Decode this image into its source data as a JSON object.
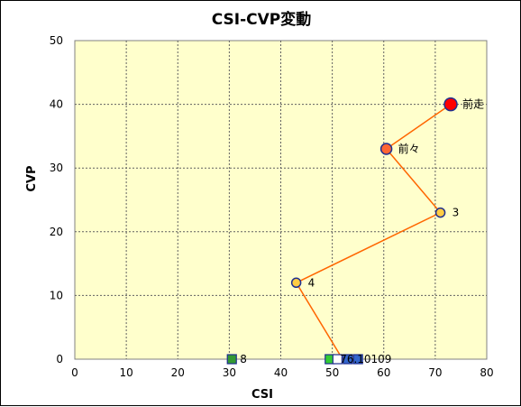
{
  "chart_data": {
    "type": "scatter",
    "title": "CSI-CVP変動",
    "xlabel": "CSI",
    "ylabel": "CVP",
    "xlim": [
      0,
      80
    ],
    "ylim": [
      0,
      50
    ],
    "x_ticks": [
      0,
      10,
      20,
      30,
      40,
      50,
      60,
      70,
      80
    ],
    "y_ticks": [
      0,
      10,
      20,
      30,
      40,
      50
    ],
    "grid": true,
    "background_color": "#ffffcc",
    "line_color": "#ff6600",
    "path": [
      {
        "label": "前走",
        "x": 73,
        "y": 40,
        "marker": "circle-large",
        "color": "#ff0000"
      },
      {
        "label": "前々",
        "x": 60.5,
        "y": 33,
        "marker": "circle-medium",
        "color": "#ff6633"
      },
      {
        "label": "3",
        "x": 71,
        "y": 23,
        "marker": "circle-small",
        "color": "#ffcc44"
      },
      {
        "label": "4",
        "x": 43,
        "y": 12,
        "marker": "circle-small",
        "color": "#ffcc44"
      },
      {
        "label": "",
        "x": 52,
        "y": 0,
        "marker": "none",
        "color": "#ff6600"
      }
    ],
    "squares": [
      {
        "label": "8",
        "x": 30.5,
        "y": 0,
        "color": "#339933",
        "label_side": "right"
      },
      {
        "label": "",
        "x": 49.5,
        "y": 0,
        "color": "#33cc33",
        "label_side": "none"
      },
      {
        "label": "",
        "x": 51,
        "y": 0,
        "color": "#ffffff",
        "label_side": "none"
      },
      {
        "label": "",
        "x": 53,
        "y": 0,
        "color": "#3366cc",
        "label_side": "none"
      },
      {
        "label": "",
        "x": 55,
        "y": 0,
        "color": "#3366cc",
        "label_side": "none"
      }
    ],
    "overlap_label": "76.10109"
  }
}
